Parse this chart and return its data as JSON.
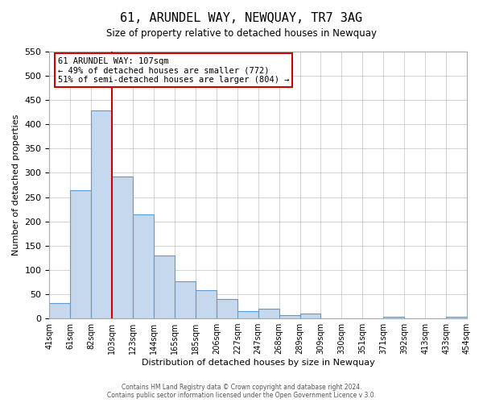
{
  "title": "61, ARUNDEL WAY, NEWQUAY, TR7 3AG",
  "subtitle": "Size of property relative to detached houses in Newquay",
  "xlabel": "Distribution of detached houses by size in Newquay",
  "ylabel": "Number of detached properties",
  "footer_line1": "Contains HM Land Registry data © Crown copyright and database right 2024.",
  "footer_line2": "Contains public sector information licensed under the Open Government Licence v 3.0.",
  "bin_labels": [
    "41sqm",
    "61sqm",
    "82sqm",
    "103sqm",
    "123sqm",
    "144sqm",
    "165sqm",
    "185sqm",
    "206sqm",
    "227sqm",
    "247sqm",
    "268sqm",
    "289sqm",
    "309sqm",
    "330sqm",
    "351sqm",
    "371sqm",
    "392sqm",
    "413sqm",
    "433sqm",
    "454sqm"
  ],
  "bar_values": [
    32,
    265,
    428,
    293,
    215,
    130,
    76,
    59,
    40,
    15,
    20,
    7,
    10,
    0,
    0,
    0,
    4,
    0,
    0,
    4
  ],
  "bar_color": "#c5d8ed",
  "bar_edge_color": "#5b9bd5",
  "vline_color": "#cc0000",
  "ylim": [
    0,
    550
  ],
  "yticks": [
    0,
    50,
    100,
    150,
    200,
    250,
    300,
    350,
    400,
    450,
    500,
    550
  ],
  "annotation_title": "61 ARUNDEL WAY: 107sqm",
  "annotation_line1": "← 49% of detached houses are smaller (772)",
  "annotation_line2": "51% of semi-detached houses are larger (804) →",
  "annotation_box_color": "#cc0000",
  "background_color": "#ffffff",
  "grid_color": "#c0c0c0"
}
